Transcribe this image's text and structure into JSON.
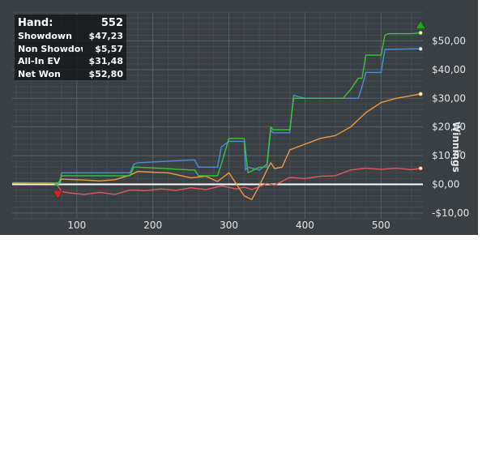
{
  "info_box": {
    "hand_label": "Hand:",
    "hand_value": "552",
    "rows": [
      {
        "label": "Showdown",
        "value": "$47,23"
      },
      {
        "label": "Non Showdown",
        "value": "$5,57"
      },
      {
        "label": "All-In EV",
        "value": "$31,48"
      },
      {
        "label": "Net Won",
        "value": "$52,80"
      }
    ]
  },
  "chart_data": {
    "type": "line",
    "ylabel": "Winnings",
    "xlim": [
      15,
      555
    ],
    "ylim": [
      -12,
      60
    ],
    "x_ticks": [
      100,
      200,
      300,
      400,
      500
    ],
    "x_tick_labels": [
      "100",
      "200",
      "300",
      "400",
      "500"
    ],
    "y_ticks": [
      -10,
      0,
      10,
      20,
      30,
      40,
      50
    ],
    "y_tick_labels": [
      "-$10,00",
      "$0,00",
      "$10,00",
      "$20,00",
      "$30,00",
      "$40,00",
      "$50,00"
    ],
    "zero_line_color": "#ffffff",
    "series": [
      {
        "name": "Showdown",
        "color": "#4a90d9",
        "x": [
          15,
          75,
          78,
          80,
          170,
          175,
          180,
          250,
          255,
          260,
          285,
          290,
          300,
          320,
          322,
          325,
          340,
          345,
          350,
          355,
          358,
          380,
          385,
          400,
          420,
          450,
          470,
          475,
          480,
          500,
          505,
          510,
          540,
          552
        ],
        "y": [
          0.5,
          0.5,
          0.3,
          4,
          4,
          7,
          7.5,
          8.5,
          8.5,
          6,
          6,
          13,
          15,
          15,
          5,
          6,
          5,
          6,
          6,
          19,
          18,
          18,
          31,
          30,
          30,
          30,
          30,
          34,
          39,
          39,
          47,
          47,
          47.2,
          47.2
        ]
      },
      {
        "name": "Non Showdown",
        "color": "#e05a5a",
        "x": [
          15,
          70,
          75,
          80,
          90,
          110,
          130,
          150,
          170,
          190,
          210,
          230,
          250,
          270,
          290,
          310,
          320,
          330,
          340,
          350,
          360,
          380,
          400,
          420,
          440,
          460,
          480,
          500,
          520,
          540,
          552
        ],
        "y": [
          0.5,
          0.4,
          -0.5,
          -2.5,
          -3.0,
          -3.5,
          -2.8,
          -3.5,
          -2.0,
          -2.2,
          -1.6,
          -2.1,
          -1.2,
          -1.8,
          -0.6,
          -1.6,
          -1.0,
          -1.8,
          -0.8,
          0.3,
          -0.3,
          2.4,
          2.0,
          2.8,
          3.0,
          5.0,
          5.6,
          5.2,
          5.6,
          5.1,
          5.57
        ]
      },
      {
        "name": "All-In EV",
        "color": "#f09a3c",
        "x": [
          15,
          70,
          75,
          80,
          110,
          130,
          150,
          170,
          180,
          200,
          220,
          250,
          270,
          285,
          300,
          320,
          330,
          340,
          350,
          355,
          360,
          370,
          380,
          400,
          420,
          440,
          460,
          480,
          500,
          520,
          552
        ],
        "y": [
          0.4,
          0.3,
          0.2,
          1.8,
          1.5,
          1.2,
          1.6,
          3.2,
          4.5,
          4.2,
          4.0,
          2.3,
          2.8,
          1.0,
          4.0,
          -4.0,
          -5.3,
          -0.5,
          5.0,
          7.5,
          5.5,
          6.0,
          12.0,
          14.0,
          16.0,
          17.0,
          20.0,
          25.0,
          28.5,
          30.0,
          31.48
        ]
      },
      {
        "name": "Net Won",
        "color": "#34c934",
        "x": [
          15,
          70,
          75,
          80,
          170,
          175,
          180,
          250,
          255,
          260,
          285,
          290,
          300,
          320,
          325,
          340,
          345,
          350,
          355,
          358,
          380,
          385,
          400,
          420,
          450,
          460,
          470,
          475,
          480,
          500,
          505,
          510,
          540,
          552
        ],
        "y": [
          0.6,
          0.5,
          -0.3,
          3.0,
          3.0,
          6.0,
          6.0,
          5.0,
          5.0,
          3.0,
          3.0,
          7.0,
          16.0,
          16.0,
          4.0,
          6.0,
          6.0,
          7.0,
          20.0,
          19.0,
          19.0,
          30.0,
          30.0,
          30.0,
          30.0,
          33.0,
          37.0,
          37.0,
          45.0,
          45.0,
          52.0,
          52.5,
          52.5,
          52.8
        ]
      }
    ],
    "markers": [
      {
        "type": "triangle-down",
        "x": 75,
        "y": -3.5,
        "color": "#e02020"
      },
      {
        "type": "triangle-up",
        "x": 552,
        "y": 55.5,
        "color": "#1fa81f"
      }
    ]
  }
}
